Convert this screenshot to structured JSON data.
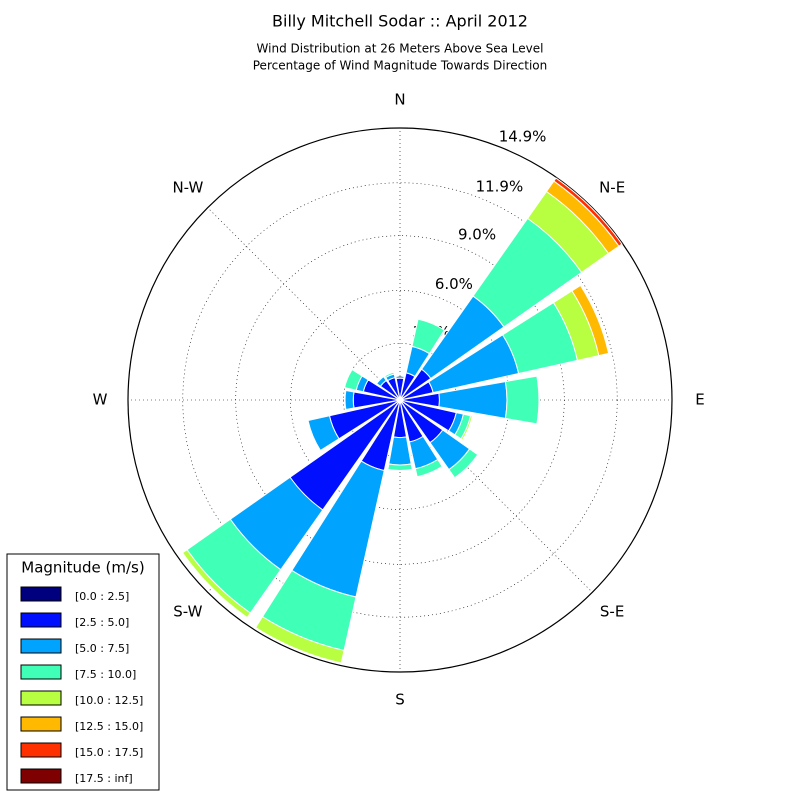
{
  "chart_data": {
    "type": "windrose",
    "title": "Billy Mitchell Sodar :: April 2012",
    "subtitle": [
      "Wind Distribution at 26 Meters Above Sea Level",
      "Percentage of Wind Magnitude Towards Direction"
    ],
    "categories": [
      "N",
      null,
      "N-E",
      null,
      "E",
      null,
      "S-E",
      null,
      "S",
      null,
      "S-W",
      null,
      "W",
      null,
      "N-W",
      null
    ],
    "ylim": [
      0,
      14.9
    ],
    "yticks": [
      {
        "value": 3.1,
        "label": "3.1%"
      },
      {
        "value": 6.0,
        "label": "6.0%"
      },
      {
        "value": 9.0,
        "label": "9.0%"
      },
      {
        "value": 11.9,
        "label": "11.9%"
      },
      {
        "value": 14.9,
        "label": "14.9%"
      }
    ],
    "grid": true,
    "legend_title": "Magnitude (m/s)",
    "legend_position": "lower left",
    "series": [
      {
        "name": "[0.0 : 2.5]",
        "color": "#00007f",
        "values": [
          0.16,
          0.16,
          0.16,
          0.16,
          0.16,
          0.16,
          0.16,
          0.16,
          0.16,
          0.16,
          0.16,
          0.16,
          0.16,
          0.16,
          0.16,
          0.16
        ]
      },
      {
        "name": "[2.5 : 5.0]",
        "color": "#0010ff",
        "values": [
          1.04,
          1.37,
          1.9,
          1.7,
          2.0,
          3.0,
          2.7,
          2.2,
          1.9,
          3.8,
          7.2,
          3.8,
          2.4,
          1.9,
          1.15,
          1.1
        ]
      },
      {
        "name": "[5.0 : 7.5]",
        "color": "#00a4ff",
        "values": [
          0.11,
          1.48,
          4.9,
          4.8,
          3.7,
          0.4,
          1.8,
          1.5,
          1.5,
          7.1,
          4.0,
          1.2,
          0.45,
          0.4,
          0.25,
          0.2
        ]
      },
      {
        "name": "[7.5 : 10.0]",
        "color": "#40ffb7",
        "values": [
          0,
          1.53,
          5.2,
          3.3,
          1.75,
          0.4,
          0.55,
          0.45,
          0.3,
          3.0,
          2.9,
          0,
          0,
          0.65,
          0,
          0.1
        ]
      },
      {
        "name": "[10.0 : 12.5]",
        "color": "#b7ff40",
        "values": [
          0,
          0,
          1.8,
          1.2,
          0,
          0.1,
          0,
          0,
          0,
          0.7,
          0.3,
          0,
          0,
          0,
          0,
          0
        ]
      },
      {
        "name": "[12.5 : 15.0]",
        "color": "#ffb900",
        "values": [
          0,
          0,
          0.7,
          0.55,
          0,
          0,
          0,
          0,
          0,
          0,
          0,
          0,
          0,
          0,
          0,
          0
        ]
      },
      {
        "name": "[15.0 : 17.5]",
        "color": "#ff3000",
        "values": [
          0,
          0,
          0.2,
          0,
          0,
          0,
          0,
          0,
          0,
          0,
          0,
          0,
          0,
          0,
          0,
          0
        ]
      },
      {
        "name": "[17.5 : inf]",
        "color": "#7f0000",
        "values": [
          0,
          0,
          0,
          0,
          0,
          0,
          0,
          0,
          0,
          0,
          0,
          0,
          0,
          0,
          0,
          0
        ]
      }
    ]
  }
}
